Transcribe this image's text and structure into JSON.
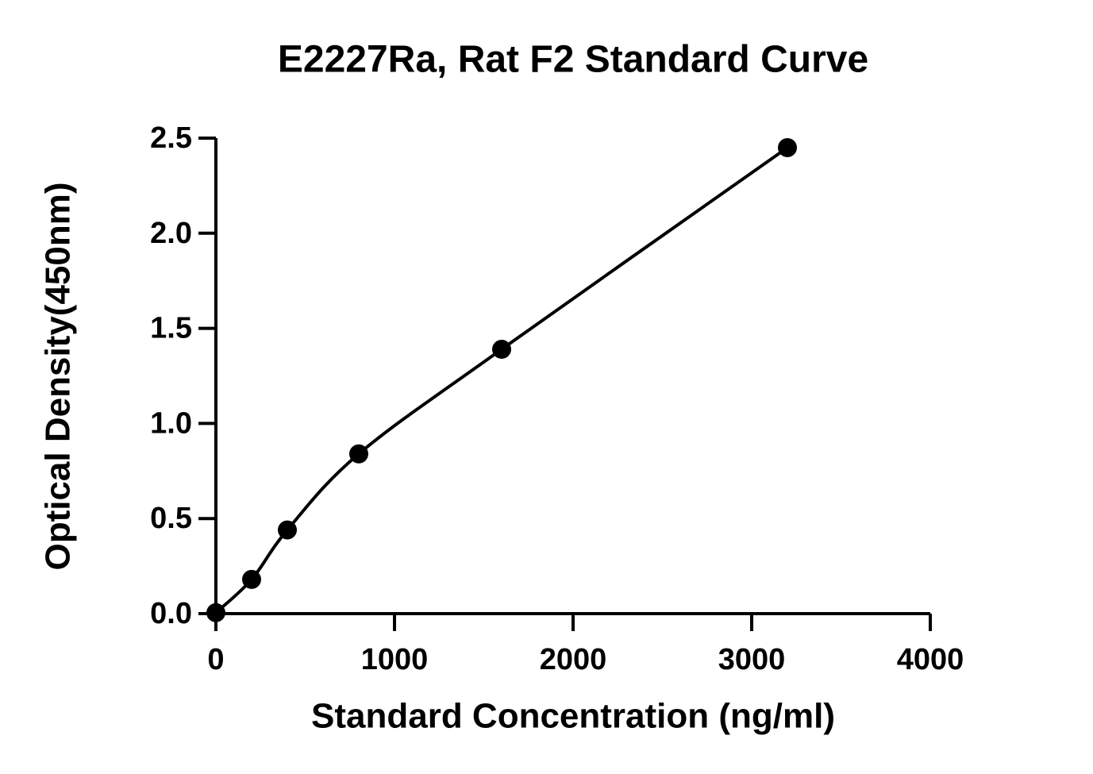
{
  "chart_data": {
    "type": "scatter",
    "title": "E2227Ra, Rat F2 Standard Curve",
    "x_label": "Standard Concentration (ng/ml)",
    "y_label": "Optical Density(450nm)",
    "x": [
      0,
      200,
      400,
      800,
      1600,
      3200
    ],
    "series": [
      {
        "color": "#000000",
        "values": [
          0.005,
          0.18,
          0.44,
          0.84,
          1.39,
          2.45
        ]
      }
    ],
    "fit_curve": true,
    "xlim": [
      0,
      4000
    ],
    "xticks": [
      0,
      1000,
      2000,
      3000,
      4000
    ],
    "ylim": [
      0,
      2.5
    ],
    "yticks": [
      {
        "value": 0,
        "label": "0.0"
      },
      0.5,
      {
        "value": 1,
        "label": "1.0"
      },
      1.5,
      {
        "value": 2,
        "label": "2.0"
      },
      2.5
    ]
  }
}
